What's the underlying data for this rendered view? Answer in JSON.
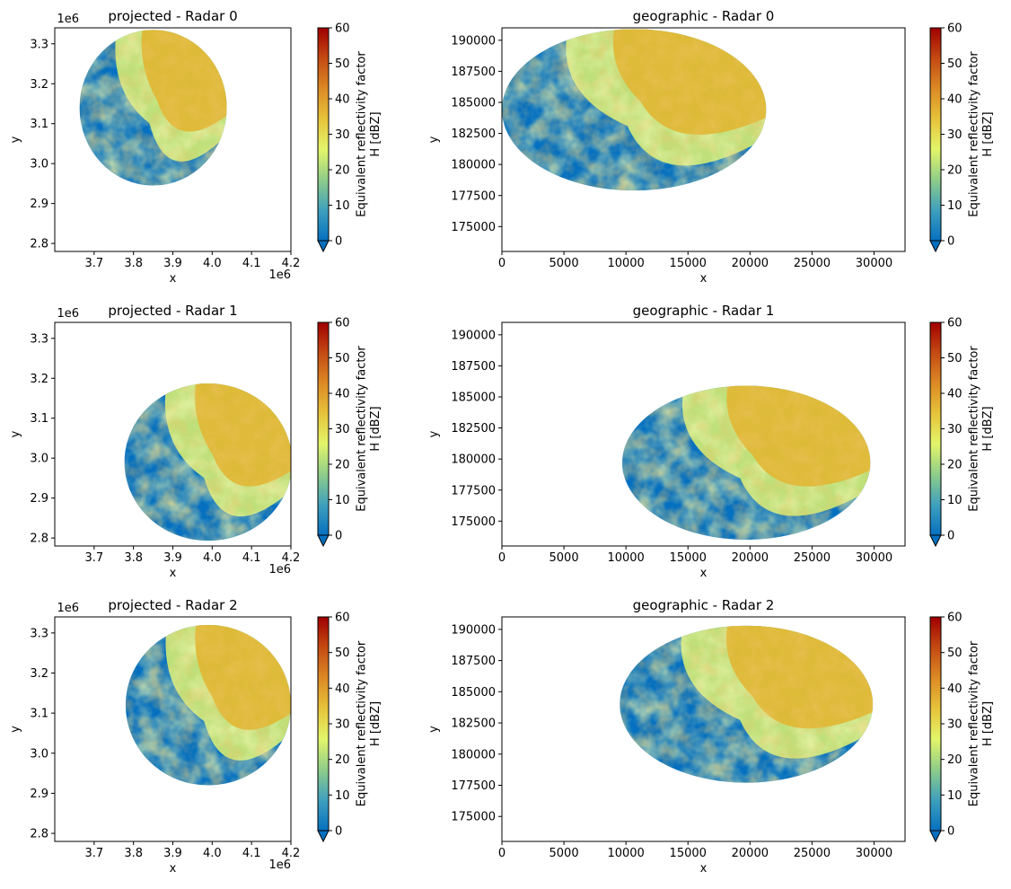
{
  "chart_data": [
    {
      "type": "heatmap",
      "title": "projected - Radar 0",
      "xlabel": "x",
      "ylabel": "y",
      "x_offset_label": "1e6",
      "y_offset_label": "1e6",
      "xlim": [
        3.6,
        4.2
      ],
      "ylim": [
        2.78,
        3.34
      ],
      "xticks": [
        3.7,
        3.8,
        3.9,
        4.0,
        4.1,
        4.2
      ],
      "xtick_labels": [
        "3.7",
        "3.8",
        "3.9",
        "4.0",
        "4.1",
        "4.2"
      ],
      "yticks": [
        2.8,
        2.9,
        3.0,
        3.1,
        3.2,
        3.3
      ],
      "ytick_labels": [
        "2.8",
        "2.9",
        "3.0",
        "3.1",
        "3.2",
        "3.3"
      ],
      "data_ellipse": {
        "cx": 3.85,
        "cy": 3.14,
        "rx": 0.187,
        "ry": 0.195
      },
      "colorbar": {
        "label": "Equivalent reflectivity factor\nH [dBZ]",
        "min": 0,
        "max": 60,
        "ticks": [
          0,
          10,
          20,
          30,
          40,
          50,
          60
        ],
        "tick_labels": [
          "0",
          "10",
          "20",
          "30",
          "40",
          "50",
          "60"
        ],
        "extend": "min"
      }
    },
    {
      "type": "heatmap",
      "title": "geographic - Radar 0",
      "xlabel": "x",
      "ylabel": "y",
      "xlim": [
        0,
        32500
      ],
      "ylim": [
        173000,
        191000
      ],
      "xticks": [
        0,
        5000,
        10000,
        15000,
        20000,
        25000,
        30000
      ],
      "xtick_labels": [
        "0",
        "5000",
        "10000",
        "15000",
        "20000",
        "25000",
        "30000"
      ],
      "yticks": [
        175000,
        177500,
        180000,
        182500,
        185000,
        187500,
        190000
      ],
      "ytick_labels": [
        "175000",
        "177500",
        "180000",
        "182500",
        "185000",
        "187500",
        "190000"
      ],
      "data_ellipse": {
        "cx": 10650,
        "cy": 184400,
        "rx": 10650,
        "ry": 6500
      },
      "colorbar": {
        "label": "Equivalent reflectivity factor\nH [dBZ]",
        "min": 0,
        "max": 60,
        "ticks": [
          0,
          10,
          20,
          30,
          40,
          50,
          60
        ],
        "tick_labels": [
          "0",
          "10",
          "20",
          "30",
          "40",
          "50",
          "60"
        ],
        "extend": "min"
      }
    },
    {
      "type": "heatmap",
      "title": "projected - Radar 1",
      "xlabel": "x",
      "ylabel": "y",
      "x_offset_label": "1e6",
      "y_offset_label": "1e6",
      "xlim": [
        3.6,
        4.2
      ],
      "ylim": [
        2.78,
        3.34
      ],
      "xticks": [
        3.7,
        3.8,
        3.9,
        4.0,
        4.1,
        4.2
      ],
      "xtick_labels": [
        "3.7",
        "3.8",
        "3.9",
        "4.0",
        "4.1",
        "4.2"
      ],
      "yticks": [
        2.8,
        2.9,
        3.0,
        3.1,
        3.2,
        3.3
      ],
      "ytick_labels": [
        "2.8",
        "2.9",
        "3.0",
        "3.1",
        "3.2",
        "3.3"
      ],
      "data_ellipse": {
        "cx": 3.99,
        "cy": 2.99,
        "rx": 0.213,
        "ry": 0.197
      },
      "colorbar": {
        "label": "Equivalent reflectivity factor\nH [dBZ]",
        "min": 0,
        "max": 60,
        "ticks": [
          0,
          10,
          20,
          30,
          40,
          50,
          60
        ],
        "tick_labels": [
          "0",
          "10",
          "20",
          "30",
          "40",
          "50",
          "60"
        ],
        "extend": "min"
      }
    },
    {
      "type": "heatmap",
      "title": "geographic - Radar 1",
      "xlabel": "x",
      "ylabel": "y",
      "xlim": [
        0,
        32500
      ],
      "ylim": [
        173000,
        191000
      ],
      "xticks": [
        0,
        5000,
        10000,
        15000,
        20000,
        25000,
        30000
      ],
      "xtick_labels": [
        "0",
        "5000",
        "10000",
        "15000",
        "20000",
        "25000",
        "30000"
      ],
      "yticks": [
        175000,
        177500,
        180000,
        182500,
        185000,
        187500,
        190000
      ],
      "ytick_labels": [
        "175000",
        "177500",
        "180000",
        "182500",
        "185000",
        "187500",
        "190000"
      ],
      "data_ellipse": {
        "cx": 19700,
        "cy": 179700,
        "rx": 10000,
        "ry": 6200
      },
      "colorbar": {
        "label": "Equivalent reflectivity factor\nH [dBZ]",
        "min": 0,
        "max": 60,
        "ticks": [
          0,
          10,
          20,
          30,
          40,
          50,
          60
        ],
        "tick_labels": [
          "0",
          "10",
          "20",
          "30",
          "40",
          "50",
          "60"
        ],
        "extend": "min"
      }
    },
    {
      "type": "heatmap",
      "title": "projected - Radar 2",
      "xlabel": "x",
      "ylabel": "y",
      "x_offset_label": "1e6",
      "y_offset_label": "1e6",
      "xlim": [
        3.6,
        4.2
      ],
      "ylim": [
        2.78,
        3.34
      ],
      "xticks": [
        3.7,
        3.8,
        3.9,
        4.0,
        4.1,
        4.2
      ],
      "xtick_labels": [
        "3.7",
        "3.8",
        "3.9",
        "4.0",
        "4.1",
        "4.2"
      ],
      "yticks": [
        2.8,
        2.9,
        3.0,
        3.1,
        3.2,
        3.3
      ],
      "ytick_labels": [
        "2.8",
        "2.9",
        "3.0",
        "3.1",
        "3.2",
        "3.3"
      ],
      "data_ellipse": {
        "cx": 3.99,
        "cy": 3.12,
        "rx": 0.21,
        "ry": 0.2
      },
      "colorbar": {
        "label": "Equivalent reflectivity factor\nH [dBZ]",
        "min": 0,
        "max": 60,
        "ticks": [
          0,
          10,
          20,
          30,
          40,
          50,
          60
        ],
        "tick_labels": [
          "0",
          "10",
          "20",
          "30",
          "40",
          "50",
          "60"
        ],
        "extend": "min"
      }
    },
    {
      "type": "heatmap",
      "title": "geographic - Radar 2",
      "xlabel": "x",
      "ylabel": "y",
      "xlim": [
        0,
        32500
      ],
      "ylim": [
        173000,
        191000
      ],
      "xticks": [
        0,
        5000,
        10000,
        15000,
        20000,
        25000,
        30000
      ],
      "xtick_labels": [
        "0",
        "5000",
        "10000",
        "15000",
        "20000",
        "25000",
        "30000"
      ],
      "yticks": [
        175000,
        177500,
        180000,
        182500,
        185000,
        187500,
        190000
      ],
      "ytick_labels": [
        "175000",
        "177500",
        "180000",
        "182500",
        "185000",
        "187500",
        "190000"
      ],
      "data_ellipse": {
        "cx": 19700,
        "cy": 184000,
        "rx": 10200,
        "ry": 6300
      },
      "colorbar": {
        "label": "Equivalent reflectivity factor\nH [dBZ]",
        "min": 0,
        "max": 60,
        "ticks": [
          0,
          10,
          20,
          30,
          40,
          50,
          60
        ],
        "tick_labels": [
          "0",
          "10",
          "20",
          "30",
          "40",
          "50",
          "60"
        ],
        "extend": "min"
      }
    }
  ],
  "colormap": [
    "#0570c0",
    "#3fa0bd",
    "#8fcd89",
    "#e3f56a",
    "#e6c33a",
    "#dc8a25",
    "#c44a13",
    "#a00000"
  ],
  "colors": {
    "axis": "#000000",
    "background": "#ffffff"
  }
}
